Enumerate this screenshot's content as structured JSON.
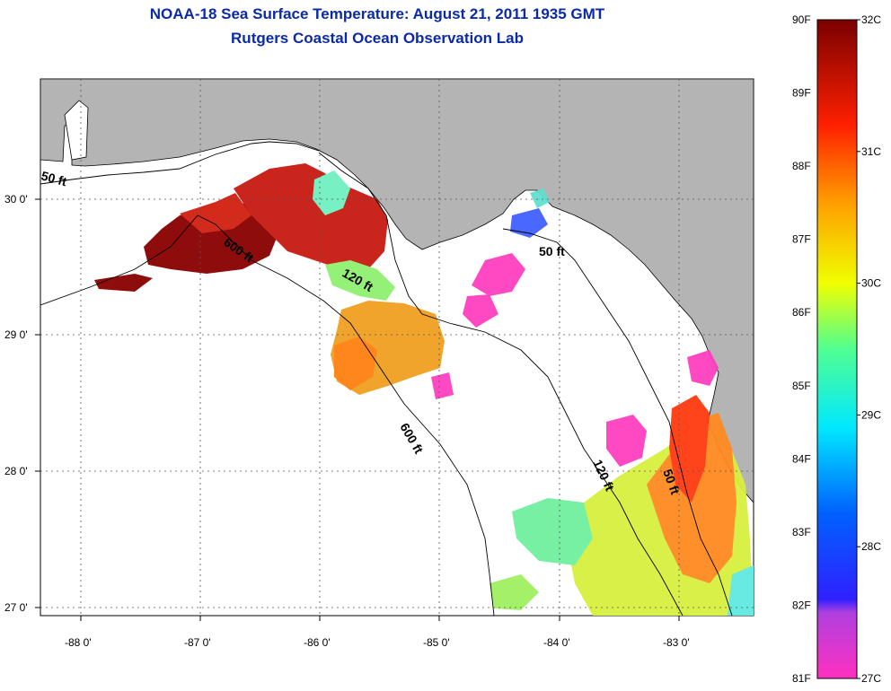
{
  "header": {
    "title": "NOAA-18 Sea Surface Temperature:  August 21, 2011 1935 GMT",
    "subtitle": "Rutgers Coastal Ocean Observation Lab"
  },
  "map": {
    "region": "Northeastern Gulf of Mexico / Florida Big Bend",
    "lon_range": [
      -88.35,
      -82.5
    ],
    "lat_range": [
      26.95,
      30.9
    ],
    "lon_ticks": [
      "-88 0'",
      "-87 0'",
      "-86 0'",
      "-85 0'",
      "-84 0'",
      "-83 0'"
    ],
    "lat_ticks": [
      "30 0'",
      "29 0'",
      "28 0'",
      "27 0'"
    ],
    "contour_labels": [
      "50 ft",
      "600 ft",
      "120 ft",
      "50 ft",
      "600 ft",
      "120 ft",
      "50 ft"
    ],
    "colors": {
      "land": "#b4b4b4",
      "ocean_nodata": "#ffffff",
      "gridlines": "#555555"
    }
  },
  "colorbar": {
    "fahrenheit": [
      "90F",
      "89F",
      "88F",
      "87F",
      "86F",
      "85F",
      "84F",
      "83F",
      "82F",
      "81F"
    ],
    "celsius": [
      "32C",
      "31C",
      "30C",
      "29C",
      "28C",
      "27C"
    ],
    "range_f": [
      81,
      90
    ],
    "range_c": [
      27,
      32
    ],
    "colors": [
      "#ff30c0",
      "#7a30e0",
      "#1020ff",
      "#00d8ff",
      "#50ff90",
      "#f0ff00",
      "#ffa000",
      "#ff3000",
      "#c00000",
      "#800000"
    ]
  }
}
